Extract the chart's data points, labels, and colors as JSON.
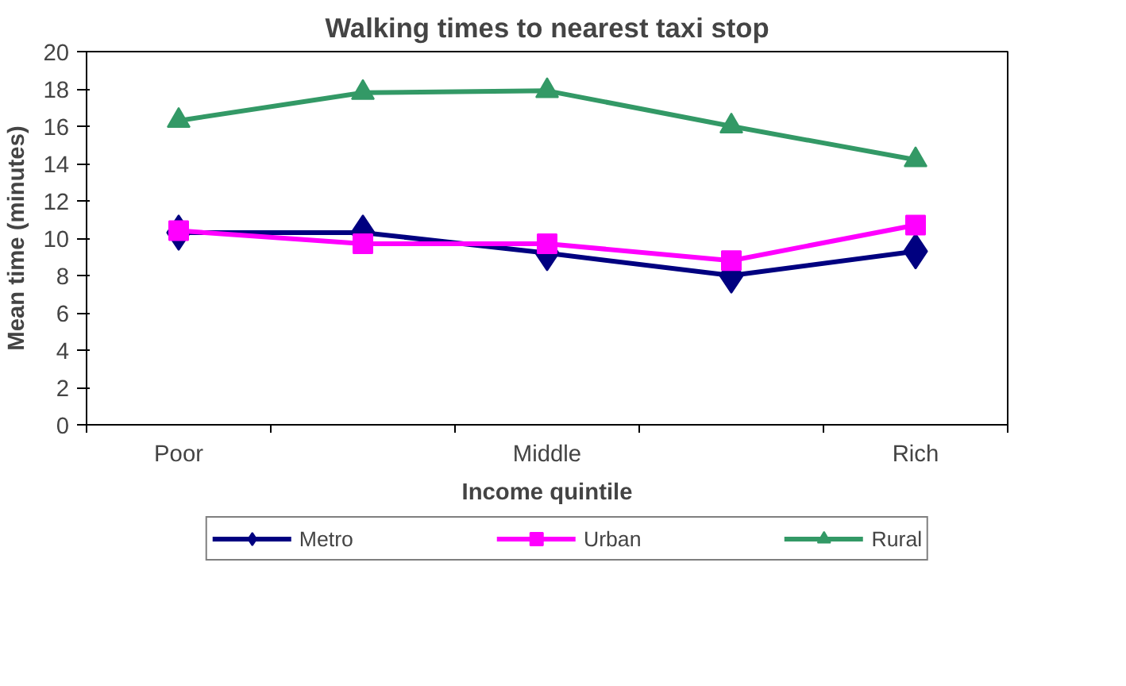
{
  "chart_data": {
    "type": "line",
    "title": "Walking times to nearest taxi stop",
    "xlabel": "Income quintile",
    "ylabel": "Mean time (minutes)",
    "categories": [
      "Poor",
      null,
      "Middle",
      null,
      "Rich"
    ],
    "series": [
      {
        "name": "Metro",
        "color": "#000080",
        "marker": "diamond",
        "values": [
          10.3,
          10.3,
          9.2,
          8.0,
          9.3
        ]
      },
      {
        "name": "Urban",
        "color": "#ff00ff",
        "marker": "square",
        "values": [
          10.4,
          9.7,
          9.7,
          8.8,
          10.7
        ]
      },
      {
        "name": "Rural",
        "color": "#339966",
        "marker": "triangle",
        "values": [
          16.3,
          17.8,
          17.9,
          16.0,
          14.2
        ]
      }
    ],
    "ylim": [
      0,
      20
    ],
    "yticks": [
      0,
      2,
      4,
      6,
      8,
      10,
      12,
      14,
      16,
      18,
      20
    ],
    "grid": false,
    "legend": "bottom"
  }
}
